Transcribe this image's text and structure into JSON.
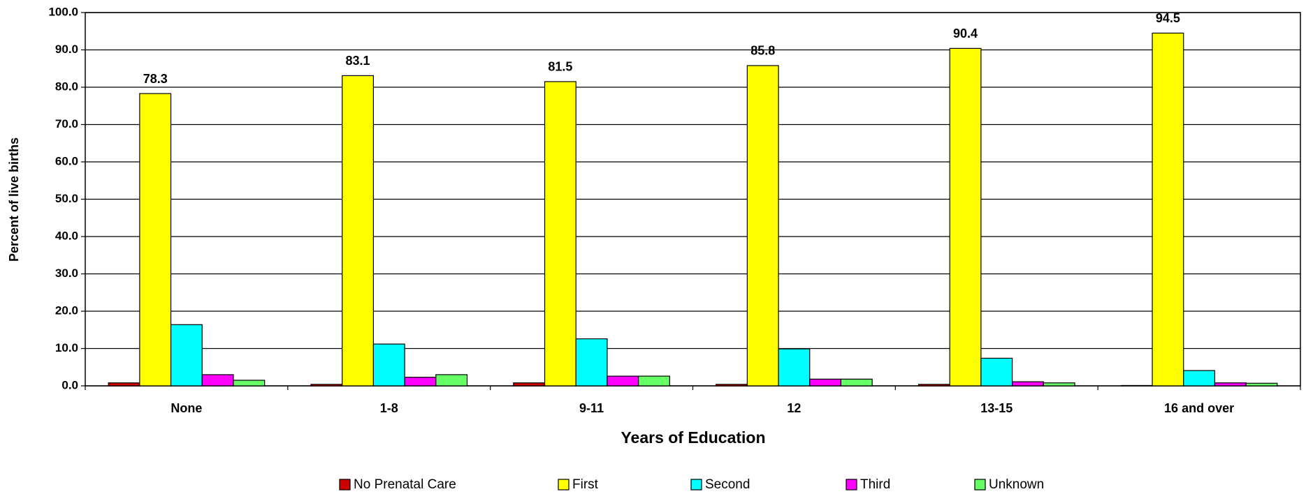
{
  "chart_data": {
    "type": "bar",
    "x_label": "Years of Education",
    "y_label": "Percent of live births",
    "categories": [
      "None",
      "1-8",
      "9-11",
      "12",
      "13-15",
      "16 and over"
    ],
    "series": [
      {
        "name": "No Prenatal Care",
        "color": "#cc0000",
        "values": [
          0.8,
          0.4,
          0.8,
          0.4,
          0.4,
          0.1
        ]
      },
      {
        "name": "First",
        "color": "#ffff00",
        "values": [
          78.3,
          83.1,
          81.5,
          85.8,
          90.4,
          94.5
        ],
        "data_labels": true
      },
      {
        "name": "Second",
        "color": "#00ffff",
        "values": [
          16.4,
          11.2,
          12.6,
          9.9,
          7.4,
          4.1
        ]
      },
      {
        "name": "Third",
        "color": "#ff00ff",
        "values": [
          3.0,
          2.3,
          2.6,
          1.8,
          1.1,
          0.8
        ]
      },
      {
        "name": "Unknown",
        "color": "#66ff66",
        "values": [
          1.5,
          3.0,
          2.6,
          1.8,
          0.8,
          0.7
        ]
      }
    ],
    "ylim": [
      0,
      100
    ],
    "yticks": [
      {
        "value": 0,
        "label": "0.0"
      },
      {
        "value": 10,
        "label": "10.0"
      },
      {
        "value": 20,
        "label": "20.0"
      },
      {
        "value": 30,
        "label": "30.0"
      },
      {
        "value": 40,
        "label": "40.0"
      },
      {
        "value": 50,
        "label": "50.0"
      },
      {
        "value": 60,
        "label": "60.0"
      },
      {
        "value": 70,
        "label": "70.0"
      },
      {
        "value": 80,
        "label": "80.0"
      },
      {
        "value": 90,
        "label": "90.0"
      },
      {
        "value": 100,
        "label": "100.0"
      }
    ],
    "grid": true,
    "legend": "bottom"
  }
}
